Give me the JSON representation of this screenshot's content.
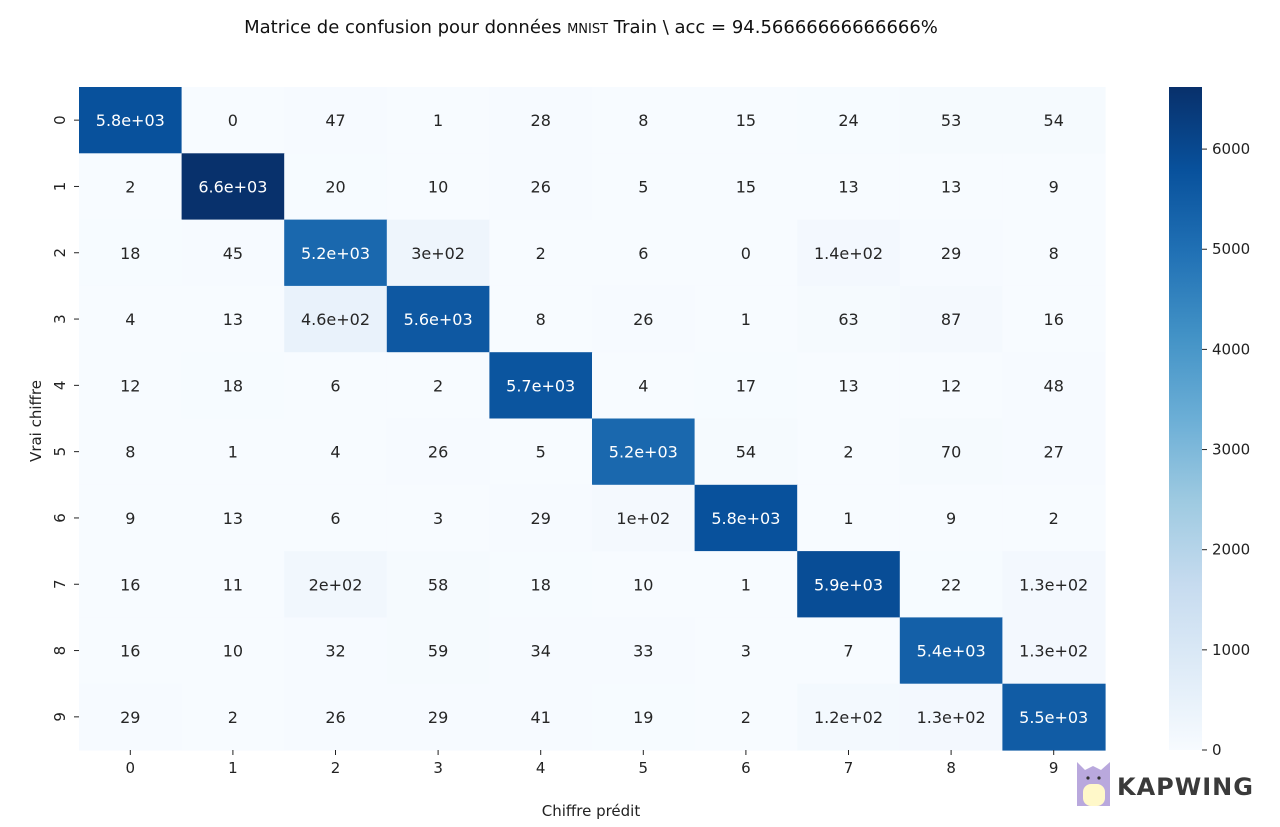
{
  "chart_data": {
    "type": "heatmap",
    "title": "Matrice de confusion pour données",
    "title_small": "MNIST",
    "title_rest": "Train \\ acc = 94.56666666666666%",
    "xlabel": "Chiffre prédit",
    "ylabel": "Vrai chiffre",
    "x_categories": [
      "0",
      "1",
      "2",
      "3",
      "4",
      "5",
      "6",
      "7",
      "8",
      "9"
    ],
    "y_categories": [
      "0",
      "1",
      "2",
      "3",
      "4",
      "5",
      "6",
      "7",
      "8",
      "9"
    ],
    "values": [
      [
        5800,
        0,
        47,
        1,
        28,
        8,
        15,
        24,
        53,
        54
      ],
      [
        2,
        6600,
        20,
        10,
        26,
        5,
        15,
        13,
        13,
        9
      ],
      [
        18,
        45,
        5200,
        300,
        2,
        6,
        0,
        140,
        29,
        8
      ],
      [
        4,
        13,
        460,
        5600,
        8,
        26,
        1,
        63,
        87,
        16
      ],
      [
        12,
        18,
        6,
        2,
        5700,
        4,
        17,
        13,
        12,
        48
      ],
      [
        8,
        1,
        4,
        26,
        5,
        5200,
        54,
        2,
        70,
        27
      ],
      [
        9,
        13,
        6,
        3,
        29,
        100,
        5800,
        1,
        9,
        2
      ],
      [
        16,
        11,
        200,
        58,
        18,
        10,
        1,
        5900,
        22,
        130
      ],
      [
        16,
        10,
        32,
        59,
        34,
        33,
        3,
        7,
        5400,
        130
      ],
      [
        29,
        2,
        26,
        29,
        41,
        19,
        2,
        120,
        130,
        5500
      ]
    ],
    "labels": [
      [
        "5.8e+03",
        "0",
        "47",
        "1",
        "28",
        "8",
        "15",
        "24",
        "53",
        "54"
      ],
      [
        "2",
        "6.6e+03",
        "20",
        "10",
        "26",
        "5",
        "15",
        "13",
        "13",
        "9"
      ],
      [
        "18",
        "45",
        "5.2e+03",
        "3e+02",
        "2",
        "6",
        "0",
        "1.4e+02",
        "29",
        "8"
      ],
      [
        "4",
        "13",
        "4.6e+02",
        "5.6e+03",
        "8",
        "26",
        "1",
        "63",
        "87",
        "16"
      ],
      [
        "12",
        "18",
        "6",
        "2",
        "5.7e+03",
        "4",
        "17",
        "13",
        "12",
        "48"
      ],
      [
        "8",
        "1",
        "4",
        "26",
        "5",
        "5.2e+03",
        "54",
        "2",
        "70",
        "27"
      ],
      [
        "9",
        "13",
        "6",
        "3",
        "29",
        "1e+02",
        "5.8e+03",
        "1",
        "9",
        "2"
      ],
      [
        "16",
        "11",
        "2e+02",
        "58",
        "18",
        "10",
        "1",
        "5.9e+03",
        "22",
        "1.3e+02"
      ],
      [
        "16",
        "10",
        "32",
        "59",
        "34",
        "33",
        "3",
        "7",
        "5.4e+03",
        "1.3e+02"
      ],
      [
        "29",
        "2",
        "26",
        "29",
        "41",
        "19",
        "2",
        "1.2e+02",
        "1.3e+02",
        "5.5e+03"
      ]
    ],
    "vmin": 0,
    "vmax": 6620,
    "colormap": "Blues",
    "colorbar_ticks": [
      0,
      1000,
      2000,
      3000,
      4000,
      5000,
      6000
    ],
    "colorbar_tick_labels": [
      "0",
      "1000",
      "2000",
      "3000",
      "4000",
      "5000",
      "6000"
    ]
  },
  "watermark": {
    "text": "KAPWING",
    "icon": "kapwing-cat-logo-icon"
  },
  "colors": {
    "low": "#f7fbff",
    "high": "#08306b",
    "text_dark": "#262626",
    "text_light": "#ffffff"
  }
}
